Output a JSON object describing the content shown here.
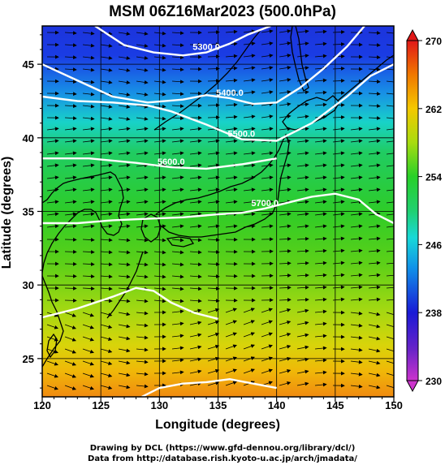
{
  "chart_data": {
    "type": "heatmap",
    "title": "MSM 06Z16Mar2023 (500.0hPa)",
    "xlabel": "Longitude (degrees)",
    "ylabel": "Latitude  (degrees)",
    "xlim": [
      120,
      150
    ],
    "ylim": [
      22.4,
      47.6
    ],
    "x_ticks": [
      120,
      125,
      130,
      135,
      140,
      145,
      150
    ],
    "y_ticks": [
      25,
      30,
      35,
      40,
      45
    ],
    "x_tick_labels": [
      "120",
      "125",
      "130",
      "135",
      "140",
      "145",
      "150"
    ],
    "y_tick_labels": [
      "25",
      "30",
      "35",
      "40",
      "45"
    ],
    "colorbar": {
      "min": 230,
      "max": 270,
      "ticks": [
        230,
        238,
        246,
        254,
        262,
        270
      ],
      "tick_labels": [
        "230",
        "238",
        "246",
        "254",
        "262",
        "270"
      ]
    },
    "temperature_field": {
      "units": "K",
      "latitude_profile": [
        {
          "lat": 22.4,
          "value": 264.0
        },
        {
          "lat": 24.0,
          "value": 262.0
        },
        {
          "lat": 26.0,
          "value": 259.0
        },
        {
          "lat": 28.0,
          "value": 257.0
        },
        {
          "lat": 30.0,
          "value": 255.5
        },
        {
          "lat": 32.0,
          "value": 254.0
        },
        {
          "lat": 35.0,
          "value": 252.5
        },
        {
          "lat": 38.0,
          "value": 251.0
        },
        {
          "lat": 40.0,
          "value": 249.5
        },
        {
          "lat": 42.0,
          "value": 247.5
        },
        {
          "lat": 44.0,
          "value": 244.0
        },
        {
          "lat": 46.0,
          "value": 240.5
        },
        {
          "lat": 47.6,
          "value": 239.5
        }
      ]
    },
    "height_contours": [
      {
        "label": "5300.0",
        "points": [
          [
            124.5,
            47.6
          ],
          [
            127,
            46.3
          ],
          [
            129.5,
            45.8
          ],
          [
            132,
            45.6
          ],
          [
            134,
            45.8
          ],
          [
            136,
            46.4
          ],
          [
            137.5,
            47.0
          ],
          [
            139.5,
            47.6
          ]
        ]
      },
      {
        "label": "5400.0",
        "points": [
          [
            120,
            45.0
          ],
          [
            123,
            43.9
          ],
          [
            126,
            42.8
          ],
          [
            129,
            42.4
          ],
          [
            132,
            42.6
          ],
          [
            134,
            42.9
          ],
          [
            136,
            42.7
          ],
          [
            138,
            42.3
          ],
          [
            140,
            42.4
          ],
          [
            142,
            43.4
          ],
          [
            144,
            44.7
          ],
          [
            146,
            46.2
          ],
          [
            147.5,
            47.6
          ]
        ]
      },
      {
        "label": "5500.0",
        "points": [
          [
            120,
            42.8
          ],
          [
            123,
            42.5
          ],
          [
            126,
            42.4
          ],
          [
            129,
            42.2
          ],
          [
            131,
            41.8
          ],
          [
            134,
            40.9
          ],
          [
            137,
            39.9
          ],
          [
            140,
            39.8
          ],
          [
            143,
            41.0
          ],
          [
            146,
            42.8
          ],
          [
            148,
            44.2
          ],
          [
            150,
            45.0
          ]
        ]
      },
      {
        "label": "5600.0",
        "points": [
          [
            120,
            38.6
          ],
          [
            124,
            38.6
          ],
          [
            128,
            38.3
          ],
          [
            131,
            38.0
          ],
          [
            134,
            37.9
          ],
          [
            137,
            38.2
          ],
          [
            140,
            38.6
          ]
        ]
      },
      {
        "label": "5700.0",
        "points": [
          [
            120,
            34.2
          ],
          [
            123,
            34.2
          ],
          [
            126,
            34.4
          ],
          [
            129,
            34.5
          ],
          [
            132,
            34.6
          ],
          [
            135,
            34.8
          ],
          [
            137,
            34.9
          ],
          [
            139,
            35.2
          ],
          [
            141,
            35.6
          ],
          [
            143,
            36.0
          ],
          [
            145,
            36.2
          ],
          [
            147,
            35.8
          ],
          [
            148.5,
            34.8
          ],
          [
            150,
            34.2
          ]
        ]
      },
      {
        "label": "",
        "points": [
          [
            120,
            27.8
          ],
          [
            123,
            28.4
          ],
          [
            126,
            29.2
          ],
          [
            128,
            29.8
          ],
          [
            129.5,
            29.6
          ],
          [
            131,
            28.8
          ],
          [
            133,
            28.1
          ],
          [
            135,
            27.7
          ]
        ]
      },
      {
        "label": "",
        "points": [
          [
            128.5,
            22.4
          ],
          [
            130,
            23.0
          ],
          [
            132,
            23.3
          ],
          [
            134,
            23.4
          ],
          [
            136,
            23.6
          ],
          [
            138,
            23.3
          ],
          [
            140,
            23.0
          ]
        ]
      }
    ]
  }
}
